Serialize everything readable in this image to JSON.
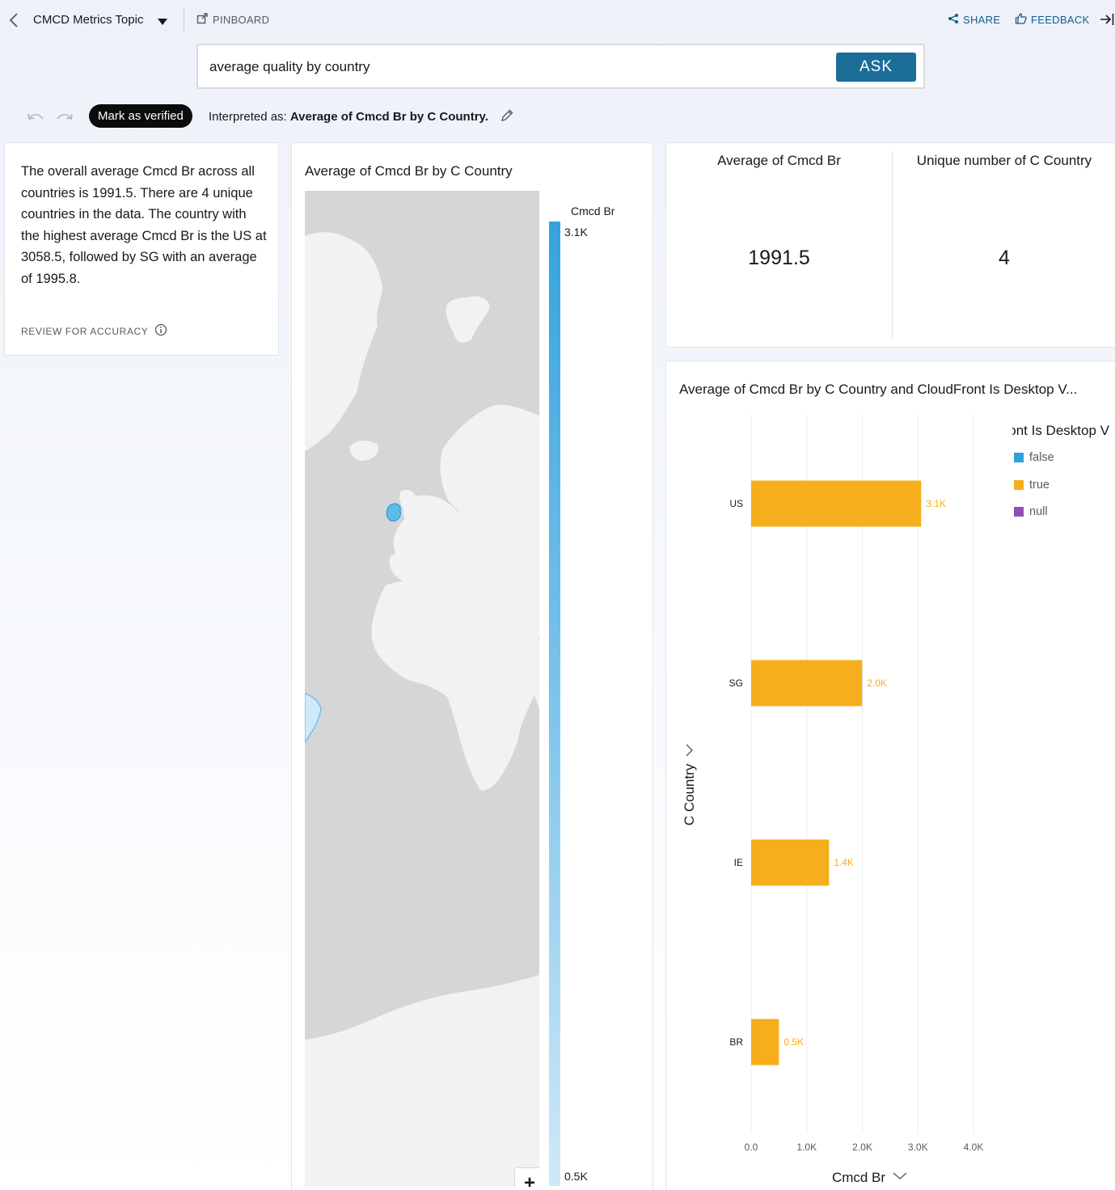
{
  "topbar": {
    "topic": "CMCD Metrics Topic",
    "pinboard": "PINBOARD",
    "share": "SHARE",
    "feedback": "FEEDBACK"
  },
  "search": {
    "value": "average quality by country",
    "ask": "ASK"
  },
  "interpretation": {
    "verified_label": "Mark as verified",
    "prefix": "Interpreted as:",
    "text": "Average of Cmcd Br by C Country."
  },
  "summary": {
    "text": "The overall average Cmcd Br across all countries is 1991.5. There are 4 unique countries in the data. The country with the highest average Cmcd Br is the US at 3058.5, followed by SG with an average of 1995.8.",
    "review": "REVIEW FOR ACCURACY"
  },
  "map": {
    "title": "Average of Cmcd Br by C Country",
    "legend_title": "Cmcd Br",
    "legend_max": "3.1K",
    "legend_min": "0.5K",
    "zoom_in": "+",
    "zoom_out": "−",
    "info": "i"
  },
  "kpis": [
    {
      "label": "Average of Cmcd Br",
      "value": "1991.5"
    },
    {
      "label": "Unique number of C Country",
      "value": "4"
    }
  ],
  "colors": {
    "accent": "#1a6e98",
    "bar_true": "#f6ae1c",
    "legend_false": "#2ea3dc",
    "legend_null": "#8f4fb8",
    "map_land": "#f2f2f2",
    "map_water": "#d4d6d8",
    "map_highlight": "#5cbbe9"
  },
  "bar_chart": {
    "title": "Average of Cmcd Br by C Country and CloudFront Is Desktop V...",
    "legend_title": "CloudFront Is Desktop V",
    "legend": [
      {
        "name": "false",
        "color": "#2ea3dc"
      },
      {
        "name": "true",
        "color": "#f6ae1c"
      },
      {
        "name": "null",
        "color": "#8f4fb8"
      }
    ]
  },
  "chart_data": {
    "type": "bar",
    "orientation": "horizontal",
    "title": "Average of Cmcd Br by C Country and CloudFront Is Desktop V...",
    "categories": [
      "US",
      "SG",
      "IE",
      "BR"
    ],
    "series": [
      {
        "name": "true",
        "values": [
          3058.5,
          1995.8,
          1400,
          500
        ]
      }
    ],
    "data_labels": [
      "3.1K",
      "2.0K",
      "1.4K",
      "0.5K"
    ],
    "xlabel": "Cmcd Br",
    "ylabel": "C Country",
    "xlim": [
      0,
      4000
    ],
    "xticks": [
      "0.0",
      "1.0K",
      "2.0K",
      "3.0K",
      "4.0K"
    ],
    "grid": true,
    "legend_position": "top-right"
  }
}
